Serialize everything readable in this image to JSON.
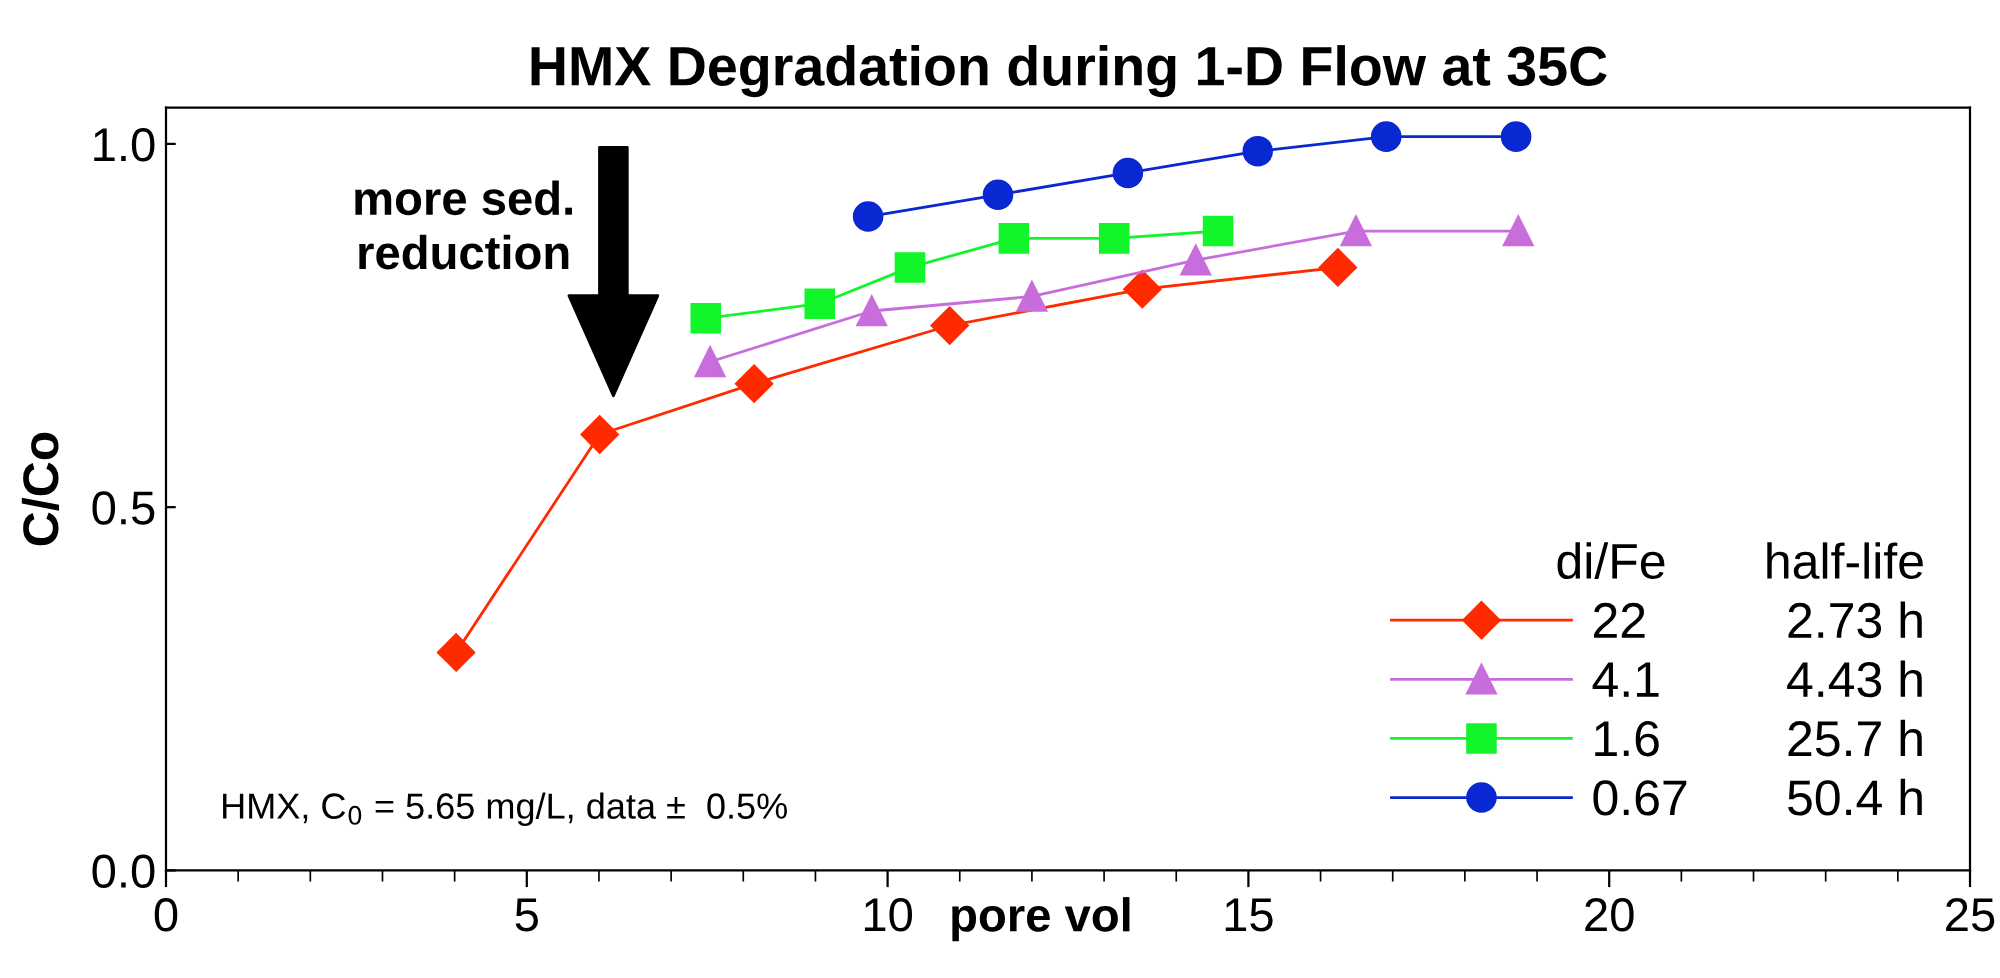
{
  "chart_data": {
    "type": "line",
    "title": "HMX Degradation during 1-D Flow at 35C",
    "xlabel": "pore vol",
    "ylabel": "C/Co",
    "legend_title": "di/Fe       half-life",
    "series": [
      {
        "name": "22          2.73 h",
        "color": "#ff2a00",
        "marker": "diamond",
        "x": [
          4.02,
          6.01,
          8.15,
          10.86,
          13.53,
          16.24
        ],
        "values": [
          0.3,
          0.6,
          0.67,
          0.75,
          0.8,
          0.83
        ]
      },
      {
        "name": "4.1         4.43 h",
        "color": "#c86ddc",
        "marker": "triangle",
        "x": [
          7.54,
          9.78,
          12.0,
          14.27,
          16.49,
          18.74
        ],
        "values": [
          0.7,
          0.77,
          0.79,
          0.84,
          0.88,
          0.88
        ]
      },
      {
        "name": "1.6         25.7 h",
        "color": "#12f52a",
        "marker": "square",
        "x": [
          7.48,
          9.06,
          10.31,
          11.75,
          13.14,
          14.58
        ],
        "values": [
          0.76,
          0.78,
          0.83,
          0.87,
          0.87,
          0.88
        ]
      },
      {
        "name": "0.67       50.4 h",
        "color": "#0a28d2",
        "marker": "circle",
        "x": [
          9.73,
          11.53,
          13.33,
          15.13,
          16.91,
          18.71
        ],
        "values": [
          0.9,
          0.93,
          0.96,
          0.99,
          1.01,
          1.01
        ]
      }
    ],
    "annotations": [
      "more sed.\nreduction",
      "HMX, C$_{0}$ = 5.65 mg/L, data ±  0.5%"
    ],
    "xlim": [
      0,
      25
    ],
    "xticks": [
      0,
      5,
      10,
      15,
      20,
      25
    ],
    "ylim": [
      0,
      1.05
    ],
    "yticks": [
      {
        "value": 0,
        "label": "0.0"
      },
      0.5,
      {
        "value": 1,
        "label": "1.0"
      }
    ],
    "grid": false,
    "legend": "bottom right"
  }
}
